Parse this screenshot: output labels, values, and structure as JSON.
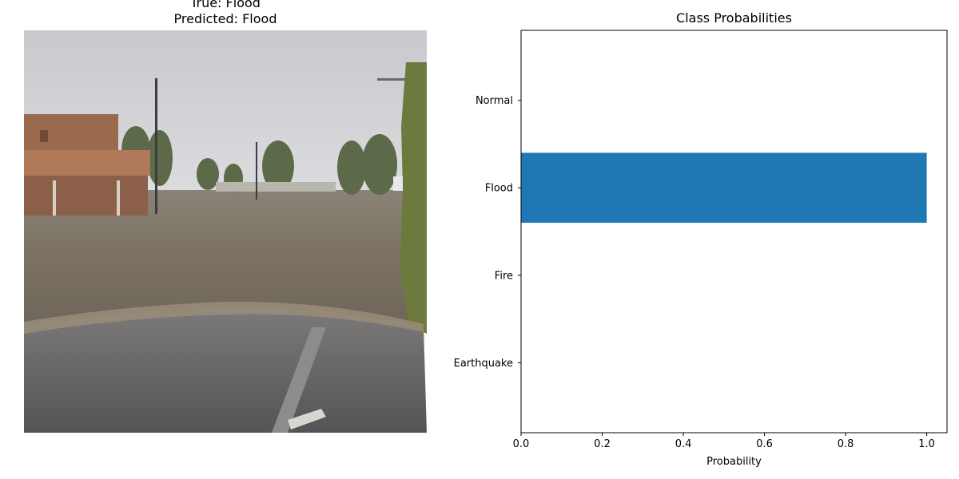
{
  "image_panel": {
    "true_label_text": "True: Flood",
    "predicted_label_text": "Predicted: Flood"
  },
  "chart_data": {
    "type": "bar",
    "orientation": "horizontal",
    "title": "Class Probabilities",
    "xlabel": "Probability",
    "ylabel": "",
    "categories": [
      "Earthquake",
      "Fire",
      "Flood",
      "Normal"
    ],
    "values": [
      0.0,
      0.0,
      1.0,
      0.0
    ],
    "xlim": [
      0,
      1.05
    ],
    "xticks": [
      0.0,
      0.2,
      0.4,
      0.6,
      0.8,
      1.0
    ],
    "xtick_labels": [
      "0.0",
      "0.2",
      "0.4",
      "0.6",
      "0.8",
      "1.0"
    ],
    "bar_color": "#1f77b4",
    "grid": false
  }
}
